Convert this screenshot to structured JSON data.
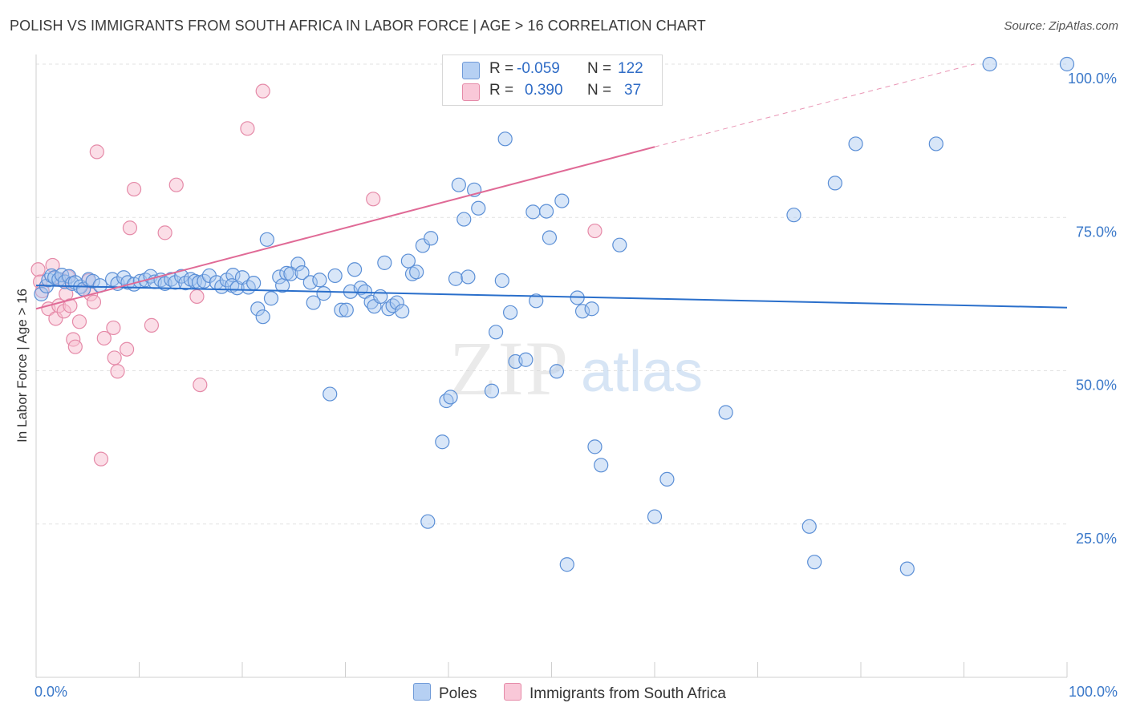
{
  "header": {
    "title": "POLISH VS IMMIGRANTS FROM SOUTH AFRICA IN LABOR FORCE | AGE > 16 CORRELATION CHART",
    "source": "Source: ZipAtlas.com"
  },
  "watermark": {
    "zip": "ZIP",
    "atlas": "atlas"
  },
  "legend": {
    "rows": [
      {
        "r_label": "R =",
        "r_value": "-0.059",
        "n_label": "N =",
        "n_value": "122"
      },
      {
        "r_label": "R =",
        "r_value": "0.390",
        "n_label": "N =",
        "n_value": "37"
      }
    ]
  },
  "chart_data": {
    "type": "scatter",
    "title": "POLISH VS IMMIGRANTS FROM SOUTH AFRICA IN LABOR FORCE | AGE > 16 CORRELATION CHART",
    "xlabel": "",
    "ylabel": "In Labor Force | Age > 16",
    "xlim": [
      0,
      100
    ],
    "ylim": [
      0,
      105
    ],
    "x_tick_labels": [
      "0.0%",
      "100.0%"
    ],
    "y_ticks": [
      25,
      50,
      75,
      100
    ],
    "y_tick_labels": [
      "25.0%",
      "50.0%",
      "75.0%",
      "100.0%"
    ],
    "grid": true,
    "legend_position": "top-center",
    "colors": {
      "poles_fill": "#a9c8f0",
      "poles_stroke": "#5b8fd6",
      "poles_line": "#2a6fcb",
      "sa_fill": "#f7bdd0",
      "sa_stroke": "#e58aa8",
      "sa_line": "#e06a96",
      "tick_label": "#3a78c9",
      "grid": "#e2e2e2"
    },
    "series": [
      {
        "name": "Poles",
        "r": -0.059,
        "n": 122,
        "trend": {
          "x0": 0,
          "y0": 63.9,
          "x1": 100,
          "y1": 60.3
        },
        "points": [
          [
            0.5,
            62.5
          ],
          [
            1.0,
            63.8
          ],
          [
            1.2,
            64.8
          ],
          [
            1.5,
            65.5
          ],
          [
            1.8,
            65.2
          ],
          [
            2.2,
            64.9
          ],
          [
            2.5,
            65.6
          ],
          [
            2.8,
            64.5
          ],
          [
            3.2,
            65.4
          ],
          [
            3.5,
            64.2
          ],
          [
            3.8,
            64.4
          ],
          [
            4.3,
            63.7
          ],
          [
            4.6,
            63.3
          ],
          [
            5.1,
            64.9
          ],
          [
            5.5,
            64.6
          ],
          [
            6.2,
            63.9
          ],
          [
            7.4,
            64.9
          ],
          [
            7.9,
            64.2
          ],
          [
            8.5,
            65.2
          ],
          [
            8.9,
            64.4
          ],
          [
            9.5,
            64.1
          ],
          [
            10.1,
            64.6
          ],
          [
            10.6,
            64.8
          ],
          [
            11.1,
            65.4
          ],
          [
            11.5,
            64.5
          ],
          [
            12.1,
            64.8
          ],
          [
            12.5,
            64.2
          ],
          [
            13.1,
            64.9
          ],
          [
            13.5,
            64.4
          ],
          [
            14.1,
            65.4
          ],
          [
            14.5,
            64.3
          ],
          [
            15.0,
            64.9
          ],
          [
            15.4,
            64.6
          ],
          [
            15.8,
            64.4
          ],
          [
            16.3,
            64.6
          ],
          [
            16.8,
            65.5
          ],
          [
            17.5,
            64.4
          ],
          [
            18.0,
            63.7
          ],
          [
            18.5,
            64.8
          ],
          [
            19.1,
            65.6
          ],
          [
            19.0,
            63.9
          ],
          [
            19.5,
            63.5
          ],
          [
            20.0,
            65.2
          ],
          [
            20.6,
            63.6
          ],
          [
            21.1,
            64.3
          ],
          [
            21.5,
            60.1
          ],
          [
            22.0,
            58.8
          ],
          [
            22.4,
            71.4
          ],
          [
            22.8,
            61.8
          ],
          [
            23.6,
            65.3
          ],
          [
            23.9,
            63.9
          ],
          [
            24.3,
            65.9
          ],
          [
            24.7,
            65.8
          ],
          [
            25.4,
            67.4
          ],
          [
            25.8,
            66.0
          ],
          [
            26.6,
            64.4
          ],
          [
            26.9,
            61.1
          ],
          [
            27.5,
            64.8
          ],
          [
            27.9,
            62.6
          ],
          [
            28.5,
            46.2
          ],
          [
            29.0,
            65.5
          ],
          [
            29.6,
            59.9
          ],
          [
            30.1,
            59.9
          ],
          [
            30.5,
            62.9
          ],
          [
            30.9,
            66.5
          ],
          [
            31.5,
            63.5
          ],
          [
            31.9,
            62.9
          ],
          [
            32.5,
            61.2
          ],
          [
            32.8,
            60.5
          ],
          [
            33.4,
            62.1
          ],
          [
            33.8,
            67.6
          ],
          [
            34.2,
            60.1
          ],
          [
            34.6,
            60.6
          ],
          [
            35.0,
            61.1
          ],
          [
            35.5,
            59.7
          ],
          [
            36.1,
            67.9
          ],
          [
            36.5,
            65.8
          ],
          [
            36.9,
            66.1
          ],
          [
            37.5,
            70.4
          ],
          [
            38.3,
            71.6
          ],
          [
            38.0,
            25.4
          ],
          [
            39.4,
            38.4
          ],
          [
            39.8,
            45.1
          ],
          [
            40.2,
            45.7
          ],
          [
            40.7,
            65.0
          ],
          [
            41.0,
            80.3
          ],
          [
            41.5,
            74.7
          ],
          [
            41.9,
            65.3
          ],
          [
            42.5,
            79.5
          ],
          [
            42.9,
            76.5
          ],
          [
            44.2,
            46.7
          ],
          [
            44.6,
            56.3
          ],
          [
            45.2,
            64.7
          ],
          [
            45.5,
            87.8
          ],
          [
            46.0,
            59.5
          ],
          [
            46.5,
            51.5
          ],
          [
            47.5,
            51.8
          ],
          [
            48.2,
            75.9
          ],
          [
            48.5,
            61.4
          ],
          [
            49.5,
            76.0
          ],
          [
            49.8,
            71.7
          ],
          [
            50.5,
            49.9
          ],
          [
            51.0,
            77.7
          ],
          [
            51.5,
            18.4
          ],
          [
            52.5,
            61.9
          ],
          [
            53.0,
            59.7
          ],
          [
            53.9,
            60.1
          ],
          [
            54.2,
            37.6
          ],
          [
            54.8,
            34.6
          ],
          [
            56.6,
            70.5
          ],
          [
            60.0,
            26.2
          ],
          [
            61.2,
            32.3
          ],
          [
            66.9,
            43.2
          ],
          [
            73.5,
            75.4
          ],
          [
            75.0,
            24.6
          ],
          [
            75.5,
            18.8
          ],
          [
            77.5,
            80.6
          ],
          [
            79.5,
            87.0
          ],
          [
            84.5,
            17.7
          ],
          [
            87.3,
            87.0
          ],
          [
            92.5,
            100.0
          ],
          [
            100.0,
            100.0
          ]
        ]
      },
      {
        "name": "Immigrants from South Africa",
        "r": 0.39,
        "n": 37,
        "trend": {
          "x0": 0,
          "y0": 60.1,
          "x1": 60,
          "y1": 86.5,
          "dashed_to_x": 91,
          "dashed_to_y": 100
        },
        "points": [
          [
            0.2,
            66.5
          ],
          [
            0.4,
            64.5
          ],
          [
            0.6,
            63.0
          ],
          [
            1.2,
            60.1
          ],
          [
            1.6,
            67.2
          ],
          [
            1.9,
            58.5
          ],
          [
            2.2,
            60.6
          ],
          [
            2.5,
            64.8
          ],
          [
            2.7,
            59.7
          ],
          [
            2.9,
            62.5
          ],
          [
            3.1,
            65.3
          ],
          [
            3.3,
            60.6
          ],
          [
            3.6,
            55.1
          ],
          [
            3.8,
            53.9
          ],
          [
            4.2,
            58.0
          ],
          [
            4.6,
            63.3
          ],
          [
            5.1,
            64.7
          ],
          [
            5.3,
            62.5
          ],
          [
            5.6,
            61.2
          ],
          [
            5.9,
            85.7
          ],
          [
            6.3,
            35.6
          ],
          [
            6.6,
            55.3
          ],
          [
            7.5,
            57.0
          ],
          [
            7.6,
            52.1
          ],
          [
            7.9,
            49.9
          ],
          [
            8.8,
            53.5
          ],
          [
            9.1,
            73.3
          ],
          [
            9.5,
            79.6
          ],
          [
            11.2,
            57.4
          ],
          [
            12.5,
            72.5
          ],
          [
            13.6,
            80.3
          ],
          [
            15.6,
            62.1
          ],
          [
            15.9,
            47.7
          ],
          [
            20.5,
            89.5
          ],
          [
            22.0,
            95.6
          ],
          [
            32.7,
            78.0
          ],
          [
            54.2,
            72.8
          ]
        ]
      }
    ]
  },
  "bottom_legend": {
    "items": [
      {
        "label": "Poles"
      },
      {
        "label": "Immigrants from South Africa"
      }
    ]
  }
}
